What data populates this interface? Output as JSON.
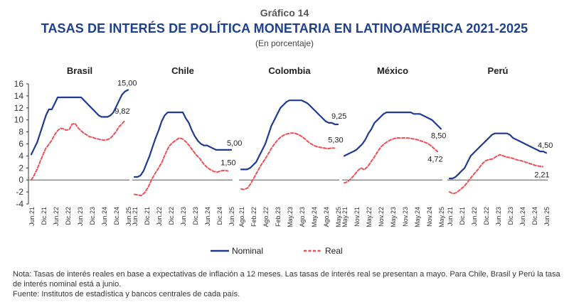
{
  "header": {
    "kicker": "Gráfico 14",
    "title": "TASAS DE INTERÉS DE POLÍTICA MONETARIA EN LATINOAMÉRICA 2021-2025",
    "subtitle": "(En porcentaje)"
  },
  "footer": {
    "note": "Nota: Tasas de interés reales en base a expectativas de inflación a 12 meses. Las tasas de interés real se presentan a mayo. Para Chile, Brasil y Perú la tasa de interés nominal está a junio.",
    "source": "Fuente: Institutos de estadística y bancos centrales de cada país."
  },
  "chart_data": {
    "type": "line",
    "ylim": [
      -4,
      16
    ],
    "yticks": [
      -4,
      -2,
      0,
      2,
      4,
      6,
      8,
      10,
      12,
      14,
      16
    ],
    "colors": {
      "nominal": "#1f3a93",
      "real": "#ee4f56"
    },
    "legend": {
      "placement": "bottom",
      "items": [
        {
          "key": "nominal",
          "label": "Nominal",
          "style": "solid"
        },
        {
          "key": "real",
          "label": "Real",
          "style": "dashed"
        }
      ]
    },
    "panels": [
      {
        "name": "Brasil",
        "xticks": [
          "Jun.21",
          "Dic.21",
          "Jun.22",
          "Dic.22",
          "Jun.23",
          "Dic.23",
          "Jun.24",
          "Dic.24",
          "Jun.25"
        ],
        "series": [
          {
            "name": "Nominal",
            "values": [
              4.25,
              5.25,
              6.25,
              7.75,
              9.25,
              10.75,
              11.75,
              11.75,
              12.75,
              13.75,
              13.75,
              13.75,
              13.75,
              13.75,
              13.75,
              13.75,
              13.75,
              13.75,
              13.25,
              12.75,
              12.25,
              11.75,
              11.25,
              10.75,
              10.5,
              10.5,
              10.5,
              10.75,
              11.25,
              12.25,
              13.25,
              14.25,
              14.75,
              15.0
            ]
          },
          {
            "name": "Real",
            "values": [
              0.0,
              0.8,
              1.8,
              3.0,
              4.2,
              5.3,
              5.9,
              6.6,
              7.5,
              8.2,
              8.6,
              8.5,
              8.3,
              8.4,
              9.3,
              9.4,
              8.7,
              8.2,
              7.8,
              7.5,
              7.2,
              7.1,
              6.9,
              6.8,
              6.7,
              6.6,
              6.7,
              6.9,
              7.4,
              8.0,
              8.8,
              9.3,
              9.82
            ]
          }
        ],
        "annotations": {
          "nominal_last": "15,00",
          "real_last": "9,82"
        }
      },
      {
        "name": "Chile",
        "xticks": [
          "Jun.21",
          "Dic.21",
          "Jun.22",
          "Dic.22",
          "Jun.23",
          "Dic.23",
          "Jun.24",
          "Dic.24",
          "Jun.25"
        ],
        "series": [
          {
            "name": "Nominal",
            "values": [
              0.5,
              0.5,
              0.75,
              1.5,
              2.75,
              4.0,
              5.5,
              7.0,
              8.25,
              9.75,
              10.75,
              11.25,
              11.25,
              11.25,
              11.25,
              11.25,
              11.25,
              10.25,
              9.5,
              8.25,
              7.25,
              6.5,
              6.0,
              5.75,
              5.75,
              5.5,
              5.25,
              5.0,
              5.0,
              5.0,
              5.0,
              5.0,
              5.0
            ]
          },
          {
            "name": "Real",
            "values": [
              -2.4,
              -2.5,
              -2.6,
              -2.1,
              -1.2,
              0.1,
              1.1,
              2.0,
              3.0,
              4.4,
              5.6,
              6.2,
              6.6,
              7.0,
              6.8,
              6.3,
              5.6,
              4.8,
              4.1,
              3.5,
              2.7,
              2.1,
              1.7,
              1.4,
              1.3,
              1.5,
              1.6,
              1.5
            ]
          }
        ],
        "annotations": {
          "nominal_last": "5,00",
          "real_last": "1,50"
        }
      },
      {
        "name": "Colombia",
        "xticks": [
          "Ago.21",
          "Feb.22",
          "Ago.22",
          "Feb.23",
          "May.23",
          "Ago.23",
          "May.24",
          "Ago.24",
          "May.25"
        ],
        "series": [
          {
            "name": "Nominal",
            "values": [
              1.75,
              1.75,
              1.75,
              2.0,
              2.5,
              3.0,
              4.0,
              5.0,
              6.0,
              7.5,
              9.0,
              10.0,
              11.0,
              12.0,
              12.5,
              13.0,
              13.25,
              13.25,
              13.25,
              13.25,
              13.25,
              13.0,
              12.75,
              12.25,
              11.75,
              11.25,
              10.75,
              10.25,
              9.75,
              9.5,
              9.5,
              9.25,
              9.25
            ]
          },
          {
            "name": "Real",
            "values": [
              -1.5,
              -1.6,
              -1.3,
              -0.5,
              0.5,
              1.5,
              2.5,
              3.3,
              4.2,
              5.2,
              6.0,
              6.7,
              7.2,
              7.5,
              7.7,
              7.8,
              7.8,
              7.6,
              7.3,
              6.9,
              6.4,
              6.0,
              5.7,
              5.5,
              5.4,
              5.3,
              5.2,
              5.3,
              5.3
            ]
          }
        ],
        "annotations": {
          "nominal_last": "9,25",
          "real_last": "5,30"
        }
      },
      {
        "name": "México",
        "xticks": [
          "May.21",
          "Nov.21",
          "May.22",
          "Nov.22",
          "May.23",
          "Nov.23",
          "May.24",
          "Nov.24",
          "May.25"
        ],
        "series": [
          {
            "name": "Nominal",
            "values": [
              4.0,
              4.25,
              4.5,
              4.75,
              5.0,
              5.5,
              6.0,
              6.75,
              7.75,
              8.5,
              9.5,
              10.0,
              10.5,
              11.0,
              11.25,
              11.25,
              11.25,
              11.25,
              11.25,
              11.25,
              11.25,
              11.25,
              11.25,
              11.0,
              11.0,
              11.0,
              10.75,
              10.5,
              10.25,
              10.0,
              9.5,
              9.0,
              8.5
            ]
          },
          {
            "name": "Real",
            "values": [
              -0.5,
              -0.3,
              0.2,
              0.8,
              1.5,
              2.0,
              1.7,
              2.2,
              3.0,
              3.8,
              4.7,
              5.5,
              6.0,
              6.4,
              6.7,
              6.9,
              7.0,
              7.0,
              7.0,
              7.0,
              6.9,
              6.8,
              6.7,
              6.5,
              6.3,
              6.1,
              5.7,
              5.2,
              4.72
            ]
          }
        ],
        "annotations": {
          "nominal_last": "8,50",
          "real_last": "4,72"
        }
      },
      {
        "name": "Perú",
        "xticks": [
          "Jun.21",
          "Dic.21",
          "Jun.22",
          "Dic.22",
          "Jun.23",
          "Dic.23",
          "Jun.24",
          "Dic.24",
          "Jun.25"
        ],
        "series": [
          {
            "name": "Nominal",
            "values": [
              0.25,
              0.25,
              0.5,
              1.0,
              1.5,
              2.0,
              3.0,
              4.0,
              4.5,
              5.0,
              5.5,
              6.0,
              6.5,
              7.0,
              7.5,
              7.75,
              7.75,
              7.75,
              7.75,
              7.75,
              7.5,
              7.0,
              6.75,
              6.5,
              6.25,
              6.0,
              5.75,
              5.5,
              5.25,
              5.0,
              4.75,
              4.75,
              4.5
            ]
          },
          {
            "name": "Real",
            "values": [
              -2.0,
              -2.3,
              -2.1,
              -1.6,
              -1.1,
              -0.4,
              0.4,
              1.1,
              1.8,
              2.6,
              3.2,
              3.4,
              3.5,
              3.9,
              4.2,
              4.0,
              3.8,
              3.7,
              3.5,
              3.3,
              3.2,
              3.0,
              2.8,
              2.6,
              2.4,
              2.3,
              2.21
            ]
          }
        ],
        "annotations": {
          "nominal_last": "4,50",
          "real_last": "2,21"
        }
      }
    ]
  }
}
